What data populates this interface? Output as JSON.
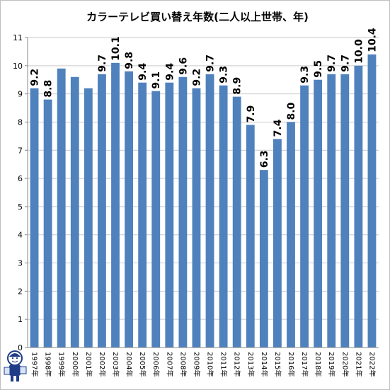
{
  "chart_data": {
    "type": "bar",
    "title": "カラーテレビ買い替え年数(二人以上世帯、年)",
    "xlabel": "",
    "ylabel": "",
    "ylim": [
      0,
      11
    ],
    "yticks": [
      0,
      1,
      2,
      3,
      4,
      5,
      6,
      7,
      8,
      9,
      10,
      11
    ],
    "grid": true,
    "legend": "none",
    "bar_color": "#4F81BD",
    "categories": [
      "1997年",
      "1998年",
      "1999年",
      "2000年",
      "2001年",
      "2002年",
      "2003年",
      "2004年",
      "2005年",
      "2006年",
      "2007年",
      "2008年",
      "2009年",
      "2010年",
      "2011年",
      "2012年",
      "2013年",
      "2014年",
      "2015年",
      "2016年",
      "2017年",
      "2018年",
      "2019年",
      "2020年",
      "2021年",
      "2022年"
    ],
    "values": [
      9.2,
      8.8,
      9.9,
      9.6,
      9.2,
      9.7,
      10.1,
      9.8,
      9.4,
      9.1,
      9.4,
      9.6,
      9.2,
      9.7,
      9.3,
      8.9,
      7.9,
      6.3,
      7.4,
      8.0,
      9.3,
      9.5,
      9.7,
      9.7,
      10.0,
      10.4
    ],
    "data_labels": [
      "9.2",
      "8.8",
      "",
      "",
      "",
      "9.7",
      "10.1",
      "9.8",
      "9.4",
      "9.1",
      "9.4",
      "9.6",
      "9.2",
      "9.7",
      "9.3",
      "8.9",
      "7.9",
      "6.3",
      "7.4",
      "8.0",
      "9.3",
      "9.5",
      "9.7",
      "9.7",
      "10.0",
      "10.4"
    ]
  }
}
